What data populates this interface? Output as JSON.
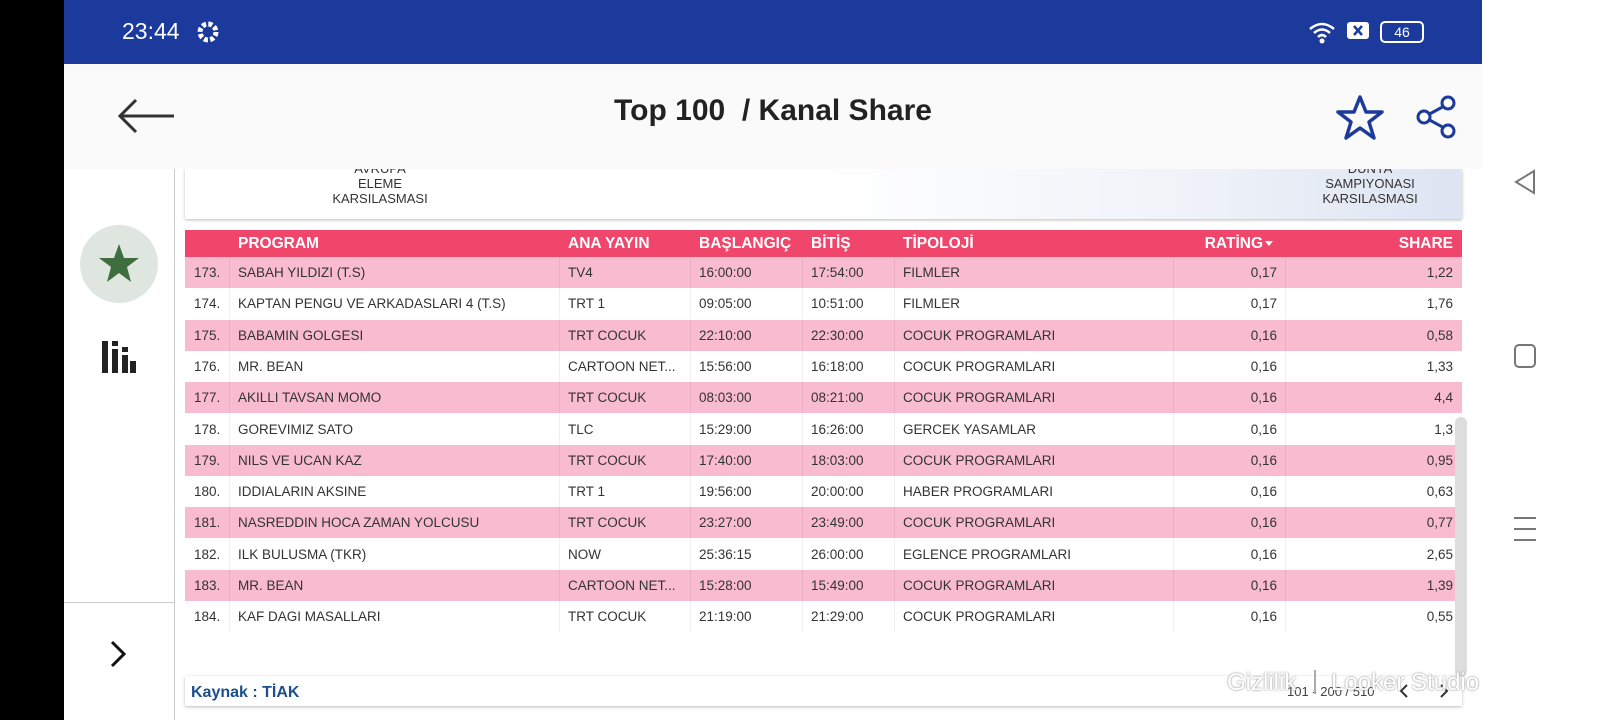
{
  "status_bar": {
    "time": "23:44",
    "battery": "46"
  },
  "header": {
    "title": "Top 100  / Kanal Share"
  },
  "banner": {
    "left": [
      "AVRUPA",
      "ELEME",
      "KARSILASMASI"
    ],
    "right": [
      "DUNYA",
      "SAMPIYONASI",
      "KARSILASMASI"
    ]
  },
  "table": {
    "columns": [
      "PROGRAM",
      "ANA YAYIN",
      "BAŞLANGIÇ",
      "BİTİŞ",
      "TİPOLOJİ",
      "RATİNG",
      "SHARE"
    ],
    "rows": [
      [
        "173.",
        "SABAH YILDIZI (T.S)",
        "TV4",
        "16:00:00",
        "17:54:00",
        "FILMLER",
        "0,17",
        "1,22"
      ],
      [
        "174.",
        "KAPTAN PENGU VE ARKADASLARI 4 (T.S)",
        "TRT 1",
        "09:05:00",
        "10:51:00",
        "FILMLER",
        "0,17",
        "1,76"
      ],
      [
        "175.",
        "BABAMIN GOLGESI",
        "TRT COCUK",
        "22:10:00",
        "22:30:00",
        "COCUK PROGRAMLARI",
        "0,16",
        "0,58"
      ],
      [
        "176.",
        "MR. BEAN",
        "CARTOON NET...",
        "15:56:00",
        "16:18:00",
        "COCUK PROGRAMLARI",
        "0,16",
        "1,33"
      ],
      [
        "177.",
        "AKILLI TAVSAN MOMO",
        "TRT COCUK",
        "08:03:00",
        "08:21:00",
        "COCUK PROGRAMLARI",
        "0,16",
        "4,4"
      ],
      [
        "178.",
        "GOREVIMIZ SATO",
        "TLC",
        "15:29:00",
        "16:26:00",
        "GERCEK YASAMLAR",
        "0,16",
        "1,3"
      ],
      [
        "179.",
        "NILS VE UCAN KAZ",
        "TRT COCUK",
        "17:40:00",
        "18:03:00",
        "COCUK PROGRAMLARI",
        "0,16",
        "0,95"
      ],
      [
        "180.",
        "IDDIALARIN AKSINE",
        "TRT 1",
        "19:56:00",
        "20:00:00",
        "HABER PROGRAMLARI",
        "0,16",
        "0,63"
      ],
      [
        "181.",
        "NASREDDIN HOCA ZAMAN YOLCUSU",
        "TRT COCUK",
        "23:27:00",
        "23:49:00",
        "COCUK PROGRAMLARI",
        "0,16",
        "0,77"
      ],
      [
        "182.",
        "ILK BULUSMA (TKR)",
        "NOW",
        "25:36:15",
        "26:00:00",
        "EGLENCE PROGRAMLARI",
        "0,16",
        "2,65"
      ],
      [
        "183.",
        "MR. BEAN",
        "CARTOON NET...",
        "15:28:00",
        "15:49:00",
        "COCUK PROGRAMLARI",
        "0,16",
        "1,39"
      ],
      [
        "184.",
        "KAF DAGI MASALLARI",
        "TRT COCUK",
        "21:19:00",
        "21:29:00",
        "COCUK PROGRAMLARI",
        "0,16",
        "0,55"
      ]
    ],
    "pagination": "101 - 200 / 510"
  },
  "footer": {
    "source": "Kaynak : TİAK",
    "privacy": "Gizlilik",
    "brand": "Looker Studio"
  }
}
